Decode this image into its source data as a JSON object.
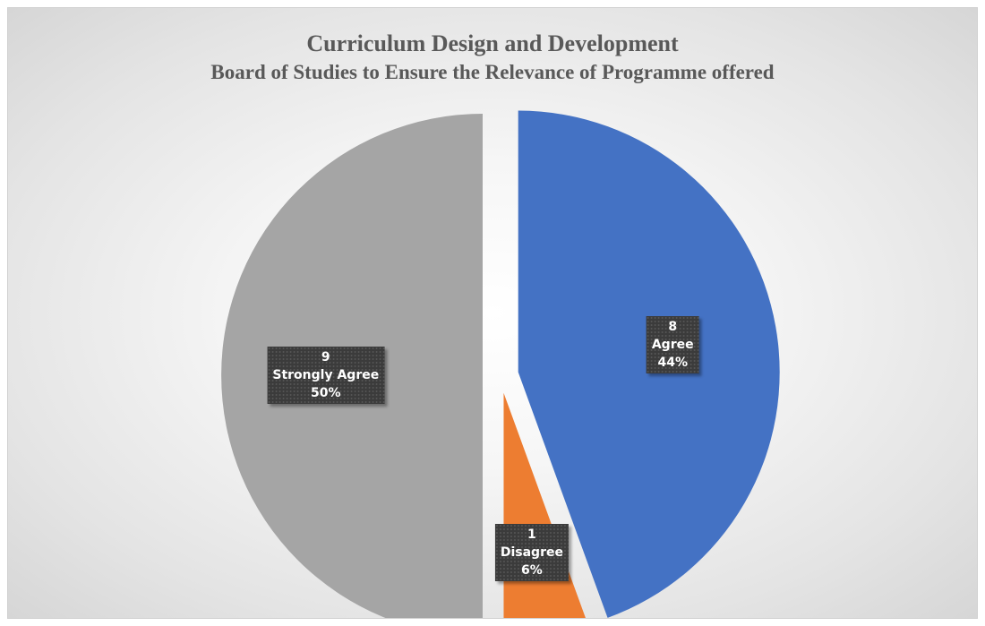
{
  "chart_data": {
    "type": "pie",
    "title": "Curriculum Design and Development",
    "subtitle": "Board of Studies to Ensure the Relevance of Programme offered",
    "slices": [
      {
        "label": "Agree",
        "value": 8,
        "percent": "44%",
        "color": "#4472c4"
      },
      {
        "label": "Disagree",
        "value": 1,
        "percent": "6%",
        "color": "#ed7d31"
      },
      {
        "label": "Strongly Agree",
        "value": 9,
        "percent": "50%",
        "color": "#a5a5a5"
      }
    ],
    "legend": "none",
    "exploded": true
  }
}
